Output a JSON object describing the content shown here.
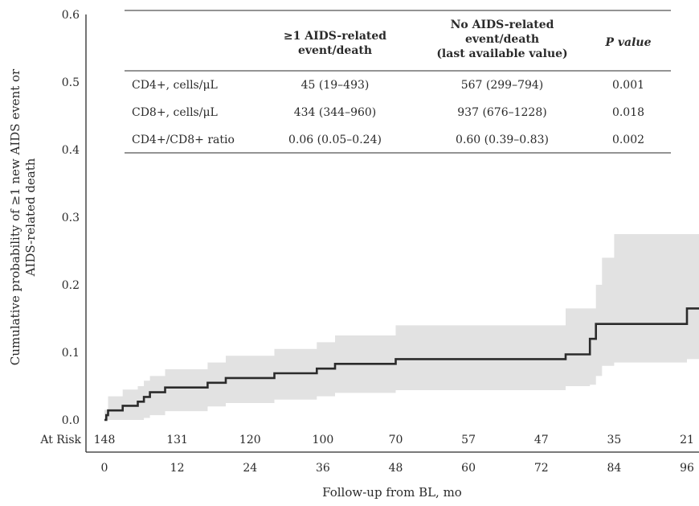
{
  "chart_data": {
    "type": "line",
    "subtype": "kaplan-meier cumulative incidence step curve with confidence band",
    "xlabel": "Follow-up from BL, mo",
    "ylabel_line1": "Cumulative probability of ≥1 new AIDS event or",
    "ylabel_line2": "AIDS-related death",
    "xlim": [
      0,
      96
    ],
    "ylim": [
      0.0,
      0.6
    ],
    "x_ticks": [
      "0",
      "12",
      "24",
      "36",
      "48",
      "60",
      "72",
      "84",
      "96"
    ],
    "x_tick_values": [
      0,
      12,
      24,
      36,
      48,
      60,
      72,
      84,
      96
    ],
    "y_ticks": [
      "0.0",
      "0.1",
      "0.2",
      "0.3",
      "0.4",
      "0.5",
      "0.6"
    ],
    "y_tick_values": [
      0.0,
      0.1,
      0.2,
      0.3,
      0.4,
      0.5,
      0.6
    ],
    "grid": false,
    "line_color": "#2b2b2b",
    "band_color": "#e2e2e2",
    "series": [
      {
        "x": [
          0,
          0.3,
          0.6,
          3,
          5.5,
          6.5,
          7.5,
          10,
          17,
          20,
          28,
          35,
          38,
          48,
          76,
          80,
          81,
          96
        ],
        "y": [
          0.0,
          0.007,
          0.014,
          0.021,
          0.027,
          0.034,
          0.041,
          0.048,
          0.055,
          0.062,
          0.069,
          0.076,
          0.083,
          0.09,
          0.097,
          0.12,
          0.142,
          0.165
        ]
      }
    ],
    "ci_lower": [
      0.0,
      0.0,
      0.0,
      0.0,
      0.003,
      0.007,
      0.013,
      0.02,
      0.025,
      0.03,
      0.035,
      0.04,
      0.044,
      0.05,
      0.052,
      0.065,
      0.08,
      0.085,
      0.09
    ],
    "ci_upper": [
      0.015,
      0.035,
      0.045,
      0.05,
      0.058,
      0.065,
      0.075,
      0.085,
      0.095,
      0.105,
      0.115,
      0.125,
      0.14,
      0.165,
      0.165,
      0.2,
      0.24,
      0.275,
      0.275
    ],
    "ci_x": [
      0,
      0.6,
      3,
      5.5,
      6.5,
      7.5,
      10,
      17,
      20,
      28,
      35,
      38,
      48,
      76,
      80,
      81,
      82,
      84,
      96
    ],
    "at_risk": {
      "label": "At Risk",
      "times": [
        0,
        12,
        24,
        36,
        48,
        60,
        72,
        84,
        96
      ],
      "counts": [
        "148",
        "131",
        "120",
        "100",
        "70",
        "57",
        "47",
        "35",
        "21"
      ]
    },
    "inset_table": {
      "headers": [
        [
          "≥1 AIDS-related",
          "event/death"
        ],
        [
          "No AIDS-related",
          "event/death",
          "(last available value)"
        ],
        [
          "P value"
        ]
      ],
      "rows": [
        {
          "label": "CD4+, cells/μL",
          "c1": "45 (19–493)",
          "c2": "567 (299–794)",
          "c3": "0.001"
        },
        {
          "label": "CD8+, cells/μL",
          "c1": "434 (344–960)",
          "c2": "937 (676–1228)",
          "c3": "0.018"
        },
        {
          "label": "CD4+/CD8+ ratio",
          "c1": "0.06 (0.05–0.24)",
          "c2": "0.60 (0.39–0.83)",
          "c3": "0.002"
        }
      ]
    }
  }
}
